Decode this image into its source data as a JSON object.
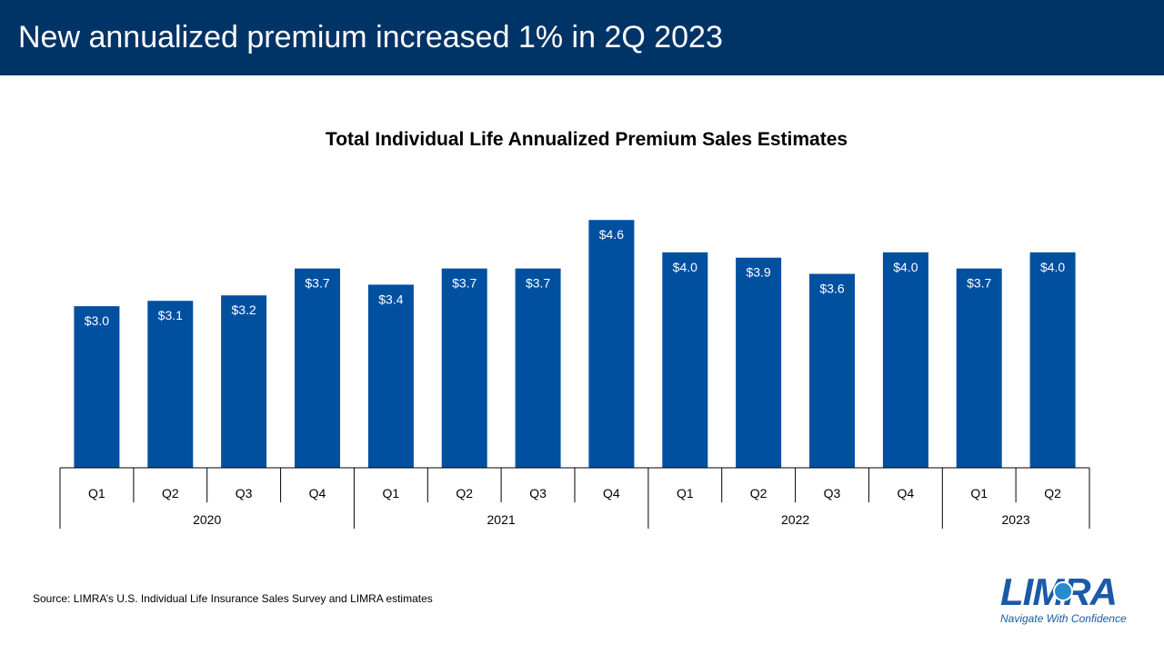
{
  "header": {
    "title": "New annualized premium increased 1% in 2Q 2023"
  },
  "colors": {
    "header_bg": "#003366",
    "bar": "#0050A0",
    "bar_label": "#FFFFFF",
    "axis": "#000000"
  },
  "chart_data": {
    "type": "bar",
    "title": "Total Individual Life Annualized Premium Sales Estimates",
    "xlabel": "",
    "ylabel": "",
    "ylim": [
      0,
      5.0
    ],
    "grid": false,
    "legend": "none",
    "categories": [
      "Q1",
      "Q2",
      "Q3",
      "Q4",
      "Q1",
      "Q2",
      "Q3",
      "Q4",
      "Q1",
      "Q2",
      "Q3",
      "Q4",
      "Q1",
      "Q2"
    ],
    "groups": [
      {
        "label": "2020",
        "count": 4
      },
      {
        "label": "2021",
        "count": 4
      },
      {
        "label": "2022",
        "count": 4
      },
      {
        "label": "2023",
        "count": 2
      }
    ],
    "values": [
      3.0,
      3.1,
      3.2,
      3.7,
      3.4,
      3.7,
      3.7,
      4.6,
      4.0,
      3.9,
      3.6,
      4.0,
      3.7,
      4.0
    ],
    "data_labels": [
      "$3.0",
      "$3.1",
      "$3.2",
      "$3.7",
      "$3.4",
      "$3.7",
      "$3.7",
      "$4.6",
      "$4.0",
      "$3.9",
      "$3.6",
      "$4.0",
      "$3.7",
      "$4.0"
    ]
  },
  "footer": {
    "source": "Source: LIMRA’s U.S. Individual Life Insurance Sales Survey and LIMRA estimates"
  },
  "logo": {
    "wordmark": "LIMRA",
    "tagline": "Navigate With Confidence"
  }
}
